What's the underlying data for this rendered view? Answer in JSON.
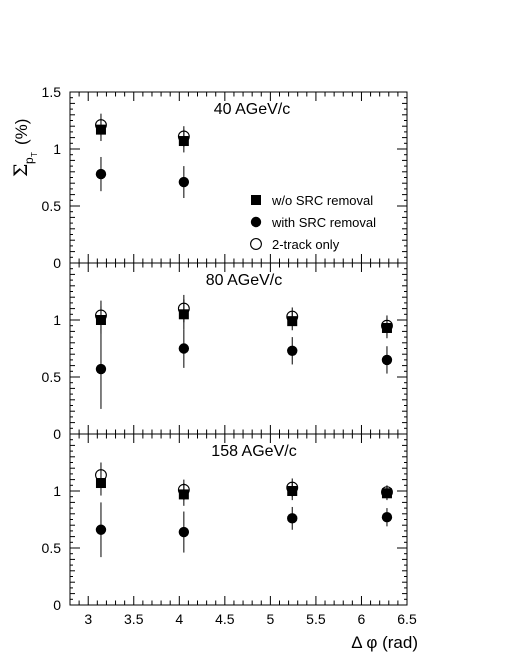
{
  "chart_data": {
    "type": "scatter",
    "xlabel": "Δ φ (rad)",
    "ylabel": {
      "symbol": "Σ",
      "subscript": "p",
      "subsubscript": "T",
      "unit": "(%)"
    },
    "xlim": [
      2.8,
      6.5
    ],
    "x_ticks": [
      "3",
      "3.5",
      "4",
      "4.5",
      "5",
      "5.5",
      "6",
      "6.5"
    ],
    "ylim": [
      0,
      1.5
    ],
    "y_ticks": [
      "0",
      "0.5",
      "1",
      "1.5"
    ],
    "grid": false,
    "legend": {
      "placement": "inside-right of top panel",
      "entries": [
        {
          "label": "w/o SRC removal",
          "marker": "filled-square"
        },
        {
          "label": "with SRC removal",
          "marker": "filled-circle"
        },
        {
          "label": "2-track only",
          "marker": "open-circle"
        }
      ]
    },
    "panels": [
      {
        "label": "40 AGeV/c",
        "series": [
          {
            "name": "w/o SRC removal",
            "marker": "filled-square",
            "points": [
              {
                "x": 3.14,
                "y": 1.17,
                "err": 0.1
              },
              {
                "x": 4.05,
                "y": 1.07,
                "err": 0.1
              }
            ]
          },
          {
            "name": "with SRC removal",
            "marker": "filled-circle",
            "points": [
              {
                "x": 3.14,
                "y": 0.78,
                "err": 0.15
              },
              {
                "x": 4.05,
                "y": 0.71,
                "err": 0.14
              }
            ]
          },
          {
            "name": "2-track only",
            "marker": "open-circle",
            "points": [
              {
                "x": 3.14,
                "y": 1.21,
                "err": 0.1
              },
              {
                "x": 4.05,
                "y": 1.11,
                "err": 0.09
              }
            ]
          }
        ]
      },
      {
        "label": "80 AGeV/c",
        "series": [
          {
            "name": "w/o SRC removal",
            "marker": "filled-square",
            "points": [
              {
                "x": 3.14,
                "y": 1.0,
                "err": 0.12
              },
              {
                "x": 4.05,
                "y": 1.05,
                "err": 0.13
              },
              {
                "x": 5.24,
                "y": 0.99,
                "err": 0.08
              },
              {
                "x": 6.28,
                "y": 0.93,
                "err": 0.09
              }
            ]
          },
          {
            "name": "with SRC removal",
            "marker": "filled-circle",
            "points": [
              {
                "x": 3.14,
                "y": 0.57,
                "err": 0.35
              },
              {
                "x": 4.05,
                "y": 0.75,
                "err": 0.17
              },
              {
                "x": 5.24,
                "y": 0.73,
                "err": 0.12
              },
              {
                "x": 6.28,
                "y": 0.65,
                "err": 0.12
              }
            ]
          },
          {
            "name": "2-track only",
            "marker": "open-circle",
            "points": [
              {
                "x": 3.14,
                "y": 1.04,
                "err": 0.13
              },
              {
                "x": 4.05,
                "y": 1.1,
                "err": 0.12
              },
              {
                "x": 5.24,
                "y": 1.03,
                "err": 0.08
              },
              {
                "x": 6.28,
                "y": 0.95,
                "err": 0.09
              }
            ]
          }
        ]
      },
      {
        "label": "158 AGeV/c",
        "series": [
          {
            "name": "w/o SRC removal",
            "marker": "filled-square",
            "points": [
              {
                "x": 3.14,
                "y": 1.07,
                "err": 0.11
              },
              {
                "x": 4.05,
                "y": 0.97,
                "err": 0.1
              },
              {
                "x": 5.24,
                "y": 1.0,
                "err": 0.08
              },
              {
                "x": 6.28,
                "y": 0.98,
                "err": 0.06
              }
            ]
          },
          {
            "name": "with SRC removal",
            "marker": "filled-circle",
            "points": [
              {
                "x": 3.14,
                "y": 0.66,
                "err": 0.24
              },
              {
                "x": 4.05,
                "y": 0.64,
                "err": 0.18
              },
              {
                "x": 5.24,
                "y": 0.76,
                "err": 0.1
              },
              {
                "x": 6.28,
                "y": 0.77,
                "err": 0.08
              }
            ]
          },
          {
            "name": "2-track only",
            "marker": "open-circle",
            "points": [
              {
                "x": 3.14,
                "y": 1.14,
                "err": 0.11
              },
              {
                "x": 4.05,
                "y": 1.01,
                "err": 0.09
              },
              {
                "x": 5.24,
                "y": 1.03,
                "err": 0.08
              },
              {
                "x": 6.28,
                "y": 0.99,
                "err": 0.06
              }
            ]
          }
        ]
      }
    ]
  }
}
